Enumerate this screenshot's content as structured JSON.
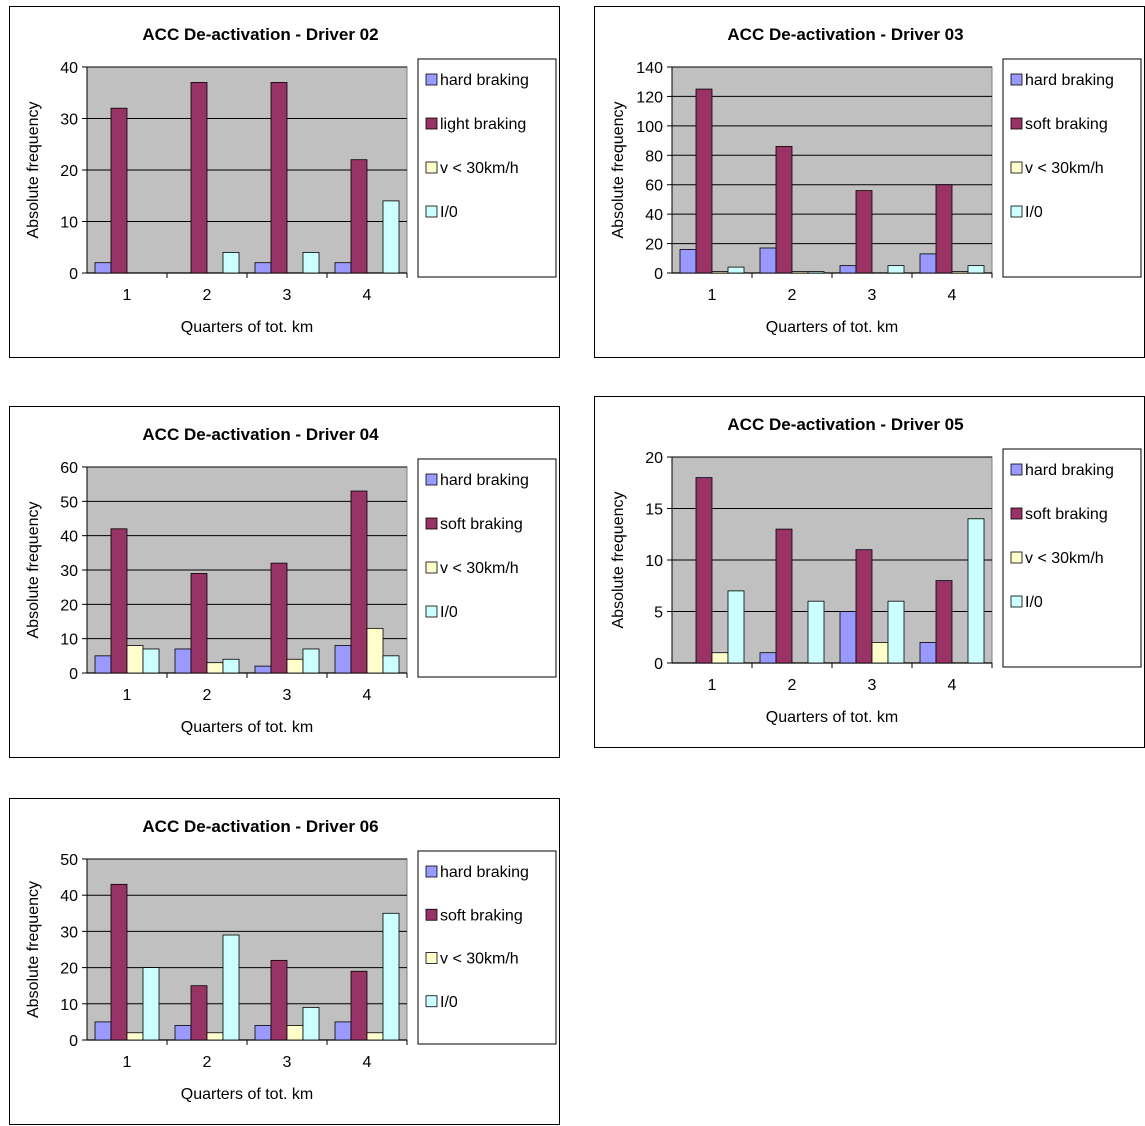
{
  "colors": {
    "hard_braking": "#9999ff",
    "soft_braking": "#993366",
    "low_speed": "#ffffcc",
    "io": "#ccffff",
    "plot_bg": "#c0c0c0",
    "grid": "#000000"
  },
  "chart_data": [
    {
      "type": "bar",
      "title": "ACC De-activation - Driver 02",
      "xlabel": "Quarters of tot. km",
      "ylabel": "Absolute frequency",
      "categories": [
        "1",
        "2",
        "3",
        "4"
      ],
      "ylim": [
        0,
        40
      ],
      "yticks": [
        "0",
        "10",
        "20",
        "30",
        "40"
      ],
      "legend_position": "right",
      "series": [
        {
          "name": "hard braking",
          "values": [
            2,
            0,
            2,
            2
          ]
        },
        {
          "name": "light braking",
          "values": [
            32,
            37,
            37,
            22
          ]
        },
        {
          "name": "v < 30km/h",
          "values": [
            0,
            0,
            0,
            0
          ]
        },
        {
          "name": "I/0",
          "values": [
            0,
            4,
            4,
            14
          ]
        }
      ]
    },
    {
      "type": "bar",
      "title": "ACC De-activation - Driver 03",
      "xlabel": "Quarters of tot. km",
      "ylabel": "Absolute frequency",
      "categories": [
        "1",
        "2",
        "3",
        "4"
      ],
      "ylim": [
        0,
        140
      ],
      "yticks": [
        "0",
        "20",
        "40",
        "60",
        "80",
        "100",
        "120",
        "140"
      ],
      "legend_position": "right",
      "series": [
        {
          "name": "hard braking",
          "values": [
            16,
            17,
            5,
            13
          ]
        },
        {
          "name": "soft braking",
          "values": [
            125,
            86,
            56,
            60
          ]
        },
        {
          "name": "v < 30km/h",
          "values": [
            1,
            1,
            0,
            1
          ]
        },
        {
          "name": "I/0",
          "values": [
            4,
            1,
            5,
            5
          ]
        }
      ]
    },
    {
      "type": "bar",
      "title": "ACC De-activation - Driver 04",
      "xlabel": "Quarters of tot. km",
      "ylabel": "Absolute frequency",
      "categories": [
        "1",
        "2",
        "3",
        "4"
      ],
      "ylim": [
        0,
        60
      ],
      "yticks": [
        "0",
        "10",
        "20",
        "30",
        "40",
        "50",
        "60"
      ],
      "legend_position": "right",
      "series": [
        {
          "name": "hard braking",
          "values": [
            5,
            7,
            2,
            8
          ]
        },
        {
          "name": "soft braking",
          "values": [
            42,
            29,
            32,
            53
          ]
        },
        {
          "name": "v < 30km/h",
          "values": [
            8,
            3,
            4,
            13
          ]
        },
        {
          "name": "I/0",
          "values": [
            7,
            4,
            7,
            5
          ]
        }
      ]
    },
    {
      "type": "bar",
      "title": "ACC De-activation - Driver 05",
      "xlabel": "Quarters of tot. km",
      "ylabel": "Absolute frequency",
      "categories": [
        "1",
        "2",
        "3",
        "4"
      ],
      "ylim": [
        0,
        20
      ],
      "yticks": [
        "0",
        "5",
        "10",
        "15",
        "20"
      ],
      "legend_position": "right",
      "series": [
        {
          "name": "hard braking",
          "values": [
            0,
            1,
            5,
            2
          ]
        },
        {
          "name": "soft braking",
          "values": [
            18,
            13,
            11,
            8
          ]
        },
        {
          "name": "v < 30km/h",
          "values": [
            1,
            0,
            2,
            0
          ]
        },
        {
          "name": "I/0",
          "values": [
            7,
            6,
            6,
            14
          ]
        }
      ]
    },
    {
      "type": "bar",
      "title": "ACC De-activation - Driver 06",
      "xlabel": "Quarters of tot. km",
      "ylabel": "Absolute frequency",
      "categories": [
        "1",
        "2",
        "3",
        "4"
      ],
      "ylim": [
        0,
        50
      ],
      "yticks": [
        "0",
        "10",
        "20",
        "30",
        "40",
        "50"
      ],
      "legend_position": "right",
      "series": [
        {
          "name": "hard braking",
          "values": [
            5,
            4,
            4,
            5
          ]
        },
        {
          "name": "soft braking",
          "values": [
            43,
            15,
            22,
            19
          ]
        },
        {
          "name": "v < 30km/h",
          "values": [
            2,
            2,
            4,
            2
          ]
        },
        {
          "name": "I/0",
          "values": [
            20,
            29,
            9,
            35
          ]
        }
      ]
    }
  ]
}
